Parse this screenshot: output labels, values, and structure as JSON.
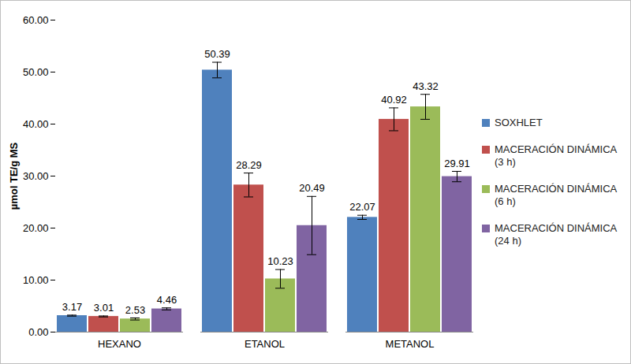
{
  "chart_data": {
    "type": "bar",
    "ylabel": "µmol TE/g MS",
    "categories": [
      "HEXANO",
      "ETANOL",
      "METANOL"
    ],
    "series": [
      {
        "name": "SOXHLET",
        "color": "#4f81bd",
        "values": [
          3.17,
          50.39,
          22.07
        ],
        "errors": [
          0.1,
          1.5,
          0.4
        ]
      },
      {
        "name": "MACERACIÓN DINÁMICA (3 h)",
        "color": "#c0504d",
        "values": [
          3.01,
          28.29,
          40.92
        ],
        "errors": [
          0.1,
          2.3,
          2.2
        ]
      },
      {
        "name": "MACERACIÓN DINÁMICA (6 h)",
        "color": "#9bbb59",
        "values": [
          2.53,
          10.23,
          43.32
        ],
        "errors": [
          0.2,
          1.8,
          2.4
        ]
      },
      {
        "name": "MACERACIÓN DINÁMICA (24 h)",
        "color": "#8064a2",
        "values": [
          4.46,
          20.49,
          29.91
        ],
        "errors": [
          0.2,
          5.6,
          1.0
        ]
      }
    ],
    "ylim": [
      0,
      60
    ],
    "yticks": [
      {
        "value": 0,
        "label": "0.00"
      },
      {
        "value": 10,
        "label": "10.00"
      },
      {
        "value": 20,
        "label": "20.00"
      },
      {
        "value": 30,
        "label": "30.00"
      },
      {
        "value": 40,
        "label": "40.00"
      },
      {
        "value": 50,
        "label": "50.00"
      },
      {
        "value": 60,
        "label": "60.00"
      }
    ],
    "grid": false,
    "legend": "right",
    "data_labels": true
  }
}
